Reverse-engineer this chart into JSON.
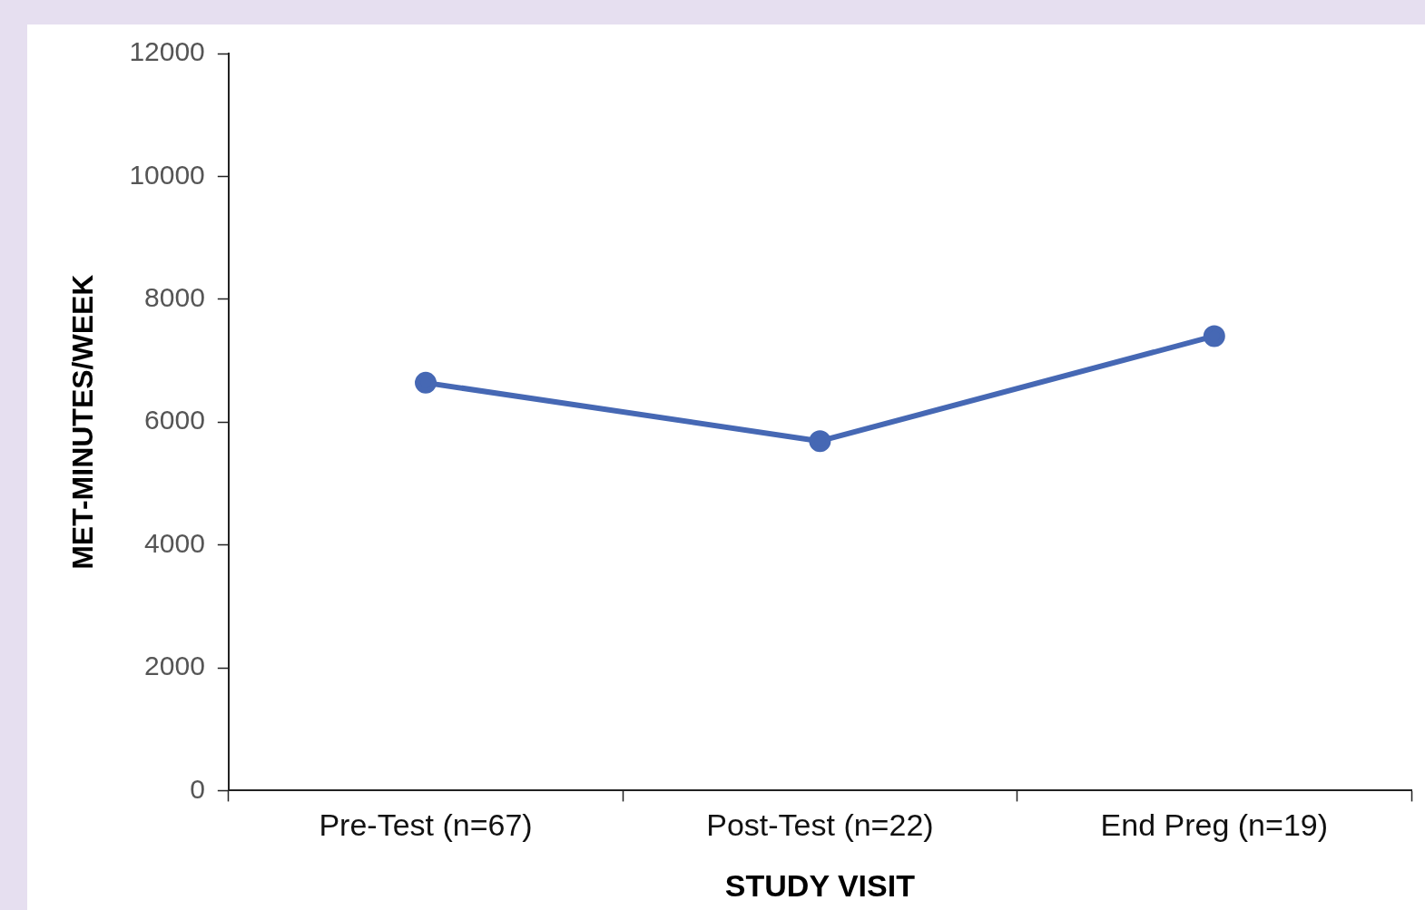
{
  "chart_data": {
    "type": "line",
    "xlabel": "STUDY VISIT",
    "ylabel": "MET-MINUTES/WEEK",
    "categories": [
      "Pre-Test (n=67)",
      "Post-Test (n=22)",
      "End Preg (n=19)"
    ],
    "series": [
      {
        "color": "#4668b4",
        "values": [
          6640,
          5690,
          7400
        ]
      }
    ],
    "ylim": [
      0,
      12000
    ],
    "yticks": [
      0,
      2000,
      4000,
      6000,
      8000,
      10000,
      12000
    ],
    "marker": "circle"
  }
}
